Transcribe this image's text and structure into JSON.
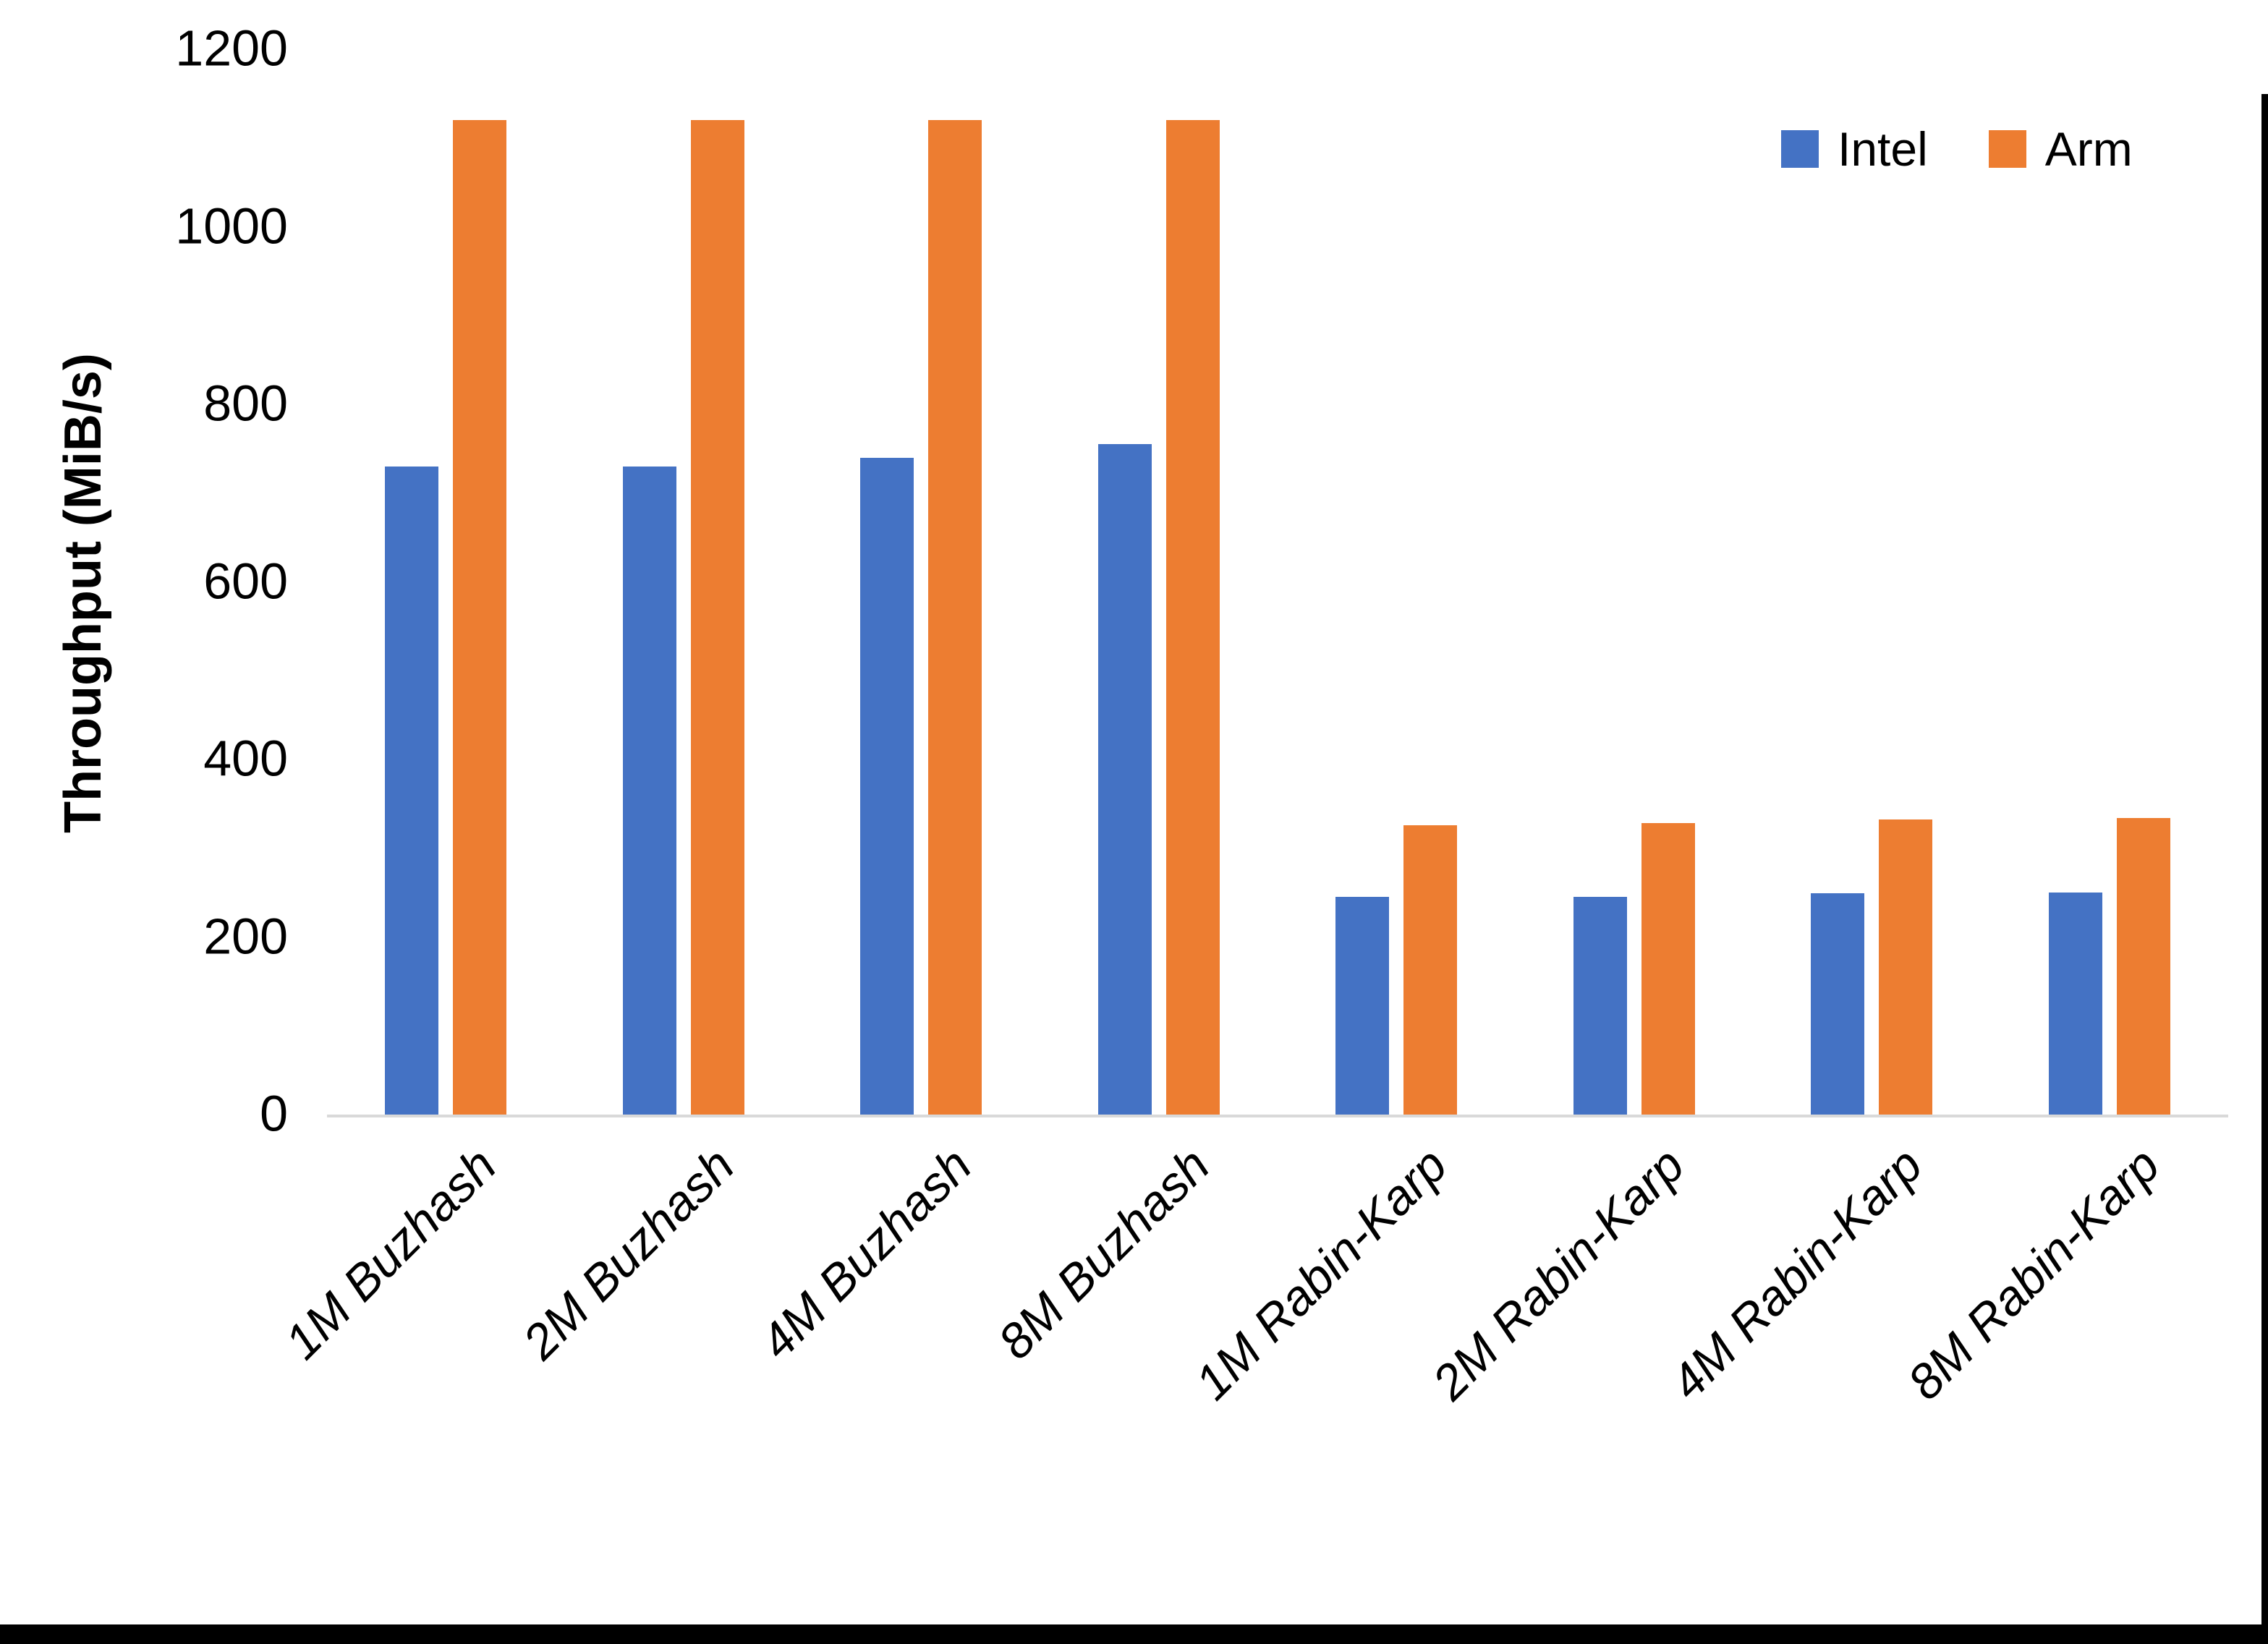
{
  "colors": {
    "intel": "#4472C4",
    "arm": "#ED7D31",
    "axis_line": "#D9D9D9",
    "page_edge": "#000000",
    "text": "#000000",
    "background": "#FFFFFF"
  },
  "legend": {
    "position": "top-right",
    "items": [
      {
        "label": "Intel",
        "color": "#4472C4"
      },
      {
        "label": "Arm",
        "color": "#ED7D31"
      }
    ]
  },
  "chart_data": {
    "type": "bar",
    "title": "",
    "xlabel": "",
    "ylabel": "Throughput (MiB/s)",
    "ylim": [
      0,
      1200
    ],
    "yticks": [
      0,
      200,
      400,
      600,
      800,
      1000,
      1200
    ],
    "grid": false,
    "legend_position": "top-right",
    "categories": [
      "1M Buzhash",
      "2M Buzhash",
      "4M Buzhash",
      "8M Buzhash",
      "1M Rabin-Karp",
      "2M Rabin-Karp",
      "4M Rabin-Karp",
      "8M Rabin-Karp"
    ],
    "series": [
      {
        "name": "Intel",
        "color": "#4472C4",
        "values": [
          730,
          730,
          740,
          755,
          245,
          245,
          249,
          250
        ]
      },
      {
        "name": "Arm",
        "color": "#ED7D31",
        "values": [
          1120,
          1120,
          1120,
          1120,
          326,
          328,
          332,
          334
        ]
      }
    ]
  }
}
